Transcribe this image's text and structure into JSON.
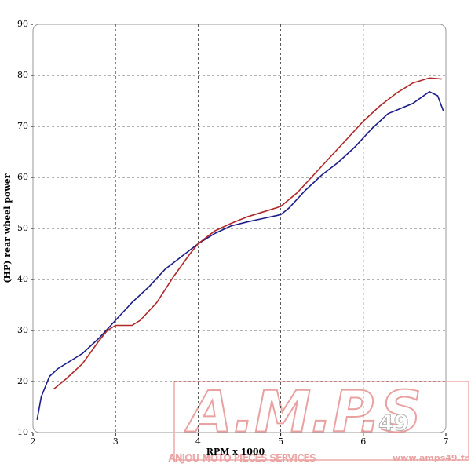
{
  "chart_data": {
    "type": "line",
    "xlabel": "RPM x 1000",
    "ylabel": "(HP) rear wheel power",
    "xlim": [
      2,
      7
    ],
    "xticks": [
      2,
      3,
      4,
      5,
      6,
      7
    ],
    "ylim": [
      10,
      90
    ],
    "yticks": [
      10,
      20,
      30,
      40,
      50,
      60,
      70,
      80,
      90
    ],
    "grid": true,
    "series": [
      {
        "color": "#1c1c8a",
        "x": [
          2.05,
          2.1,
          2.2,
          2.3,
          2.5,
          2.6,
          2.8,
          3.0,
          3.2,
          3.4,
          3.6,
          3.8,
          4.0,
          4.2,
          4.4,
          4.6,
          4.8,
          5.0,
          5.1,
          5.3,
          5.5,
          5.7,
          5.9,
          6.1,
          6.3,
          6.6,
          6.8,
          6.9,
          6.97
        ],
        "values": [
          12.5,
          17,
          21,
          22.5,
          24.5,
          25.5,
          28.5,
          32,
          35.5,
          38.5,
          42,
          44.5,
          47,
          49,
          50.5,
          51.3,
          52,
          52.7,
          54,
          57.5,
          60.5,
          63,
          66,
          69.5,
          72.5,
          74.5,
          76.8,
          76,
          73
        ]
      },
      {
        "color": "#b02828",
        "x": [
          2.25,
          2.4,
          2.6,
          2.8,
          2.9,
          3.0,
          3.1,
          3.2,
          3.3,
          3.5,
          3.7,
          3.9,
          4.0,
          4.2,
          4.4,
          4.6,
          4.8,
          5.0,
          5.2,
          5.4,
          5.6,
          5.8,
          6.0,
          6.2,
          6.4,
          6.6,
          6.8,
          6.95
        ],
        "values": [
          18.5,
          20.5,
          23.5,
          28,
          30,
          31,
          31,
          31,
          32,
          35.5,
          40.5,
          45,
          47,
          49.5,
          51,
          52.3,
          53.3,
          54.3,
          57,
          60.5,
          64,
          67.5,
          71,
          74,
          76.5,
          78.5,
          79.5,
          79.3
        ]
      }
    ]
  },
  "watermark": {
    "logo": "A.M.P.S",
    "number": "49",
    "tagline": "ANJOU MOTO PIECES SERVICES",
    "url": "www.amps49.fr"
  }
}
